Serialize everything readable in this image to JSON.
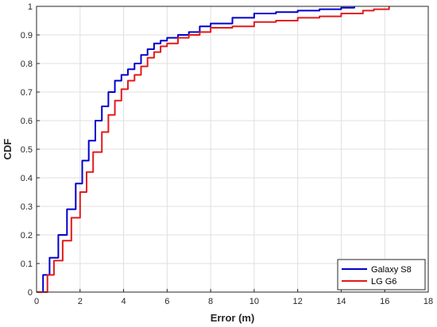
{
  "chart_data": {
    "type": "line",
    "xlabel": "Error (m)",
    "ylabel": "CDF",
    "xlim": [
      0,
      18
    ],
    "ylim": [
      0,
      1
    ],
    "xticks": [
      "0",
      "2",
      "4",
      "6",
      "8",
      "10",
      "12",
      "14",
      "16",
      "18"
    ],
    "yticks": [
      "0",
      "0.1",
      "0.2",
      "0.3",
      "0.4",
      "0.5",
      "0.6",
      "0.7",
      "0.8",
      "0.9",
      "1"
    ],
    "grid": true,
    "legend_position": "bottom-right",
    "series": [
      {
        "name": "Galaxy S8",
        "color": "#0000cc",
        "x": [
          0,
          0.3,
          0.6,
          1.0,
          1.4,
          1.8,
          2.1,
          2.4,
          2.7,
          3.0,
          3.3,
          3.6,
          3.9,
          4.2,
          4.5,
          4.8,
          5.1,
          5.4,
          5.7,
          6.0,
          6.5,
          7.0,
          7.5,
          8.0,
          9.0,
          10.0,
          11.0,
          12.0,
          13.0,
          14.0,
          14.6
        ],
        "y": [
          0,
          0.06,
          0.12,
          0.2,
          0.29,
          0.38,
          0.46,
          0.53,
          0.6,
          0.65,
          0.7,
          0.74,
          0.76,
          0.78,
          0.8,
          0.83,
          0.85,
          0.87,
          0.88,
          0.89,
          0.9,
          0.91,
          0.93,
          0.94,
          0.96,
          0.975,
          0.98,
          0.985,
          0.99,
          0.995,
          1.0
        ]
      },
      {
        "name": "LG G6",
        "color": "#e31a1c",
        "x": [
          0,
          0.5,
          0.8,
          1.2,
          1.6,
          2.0,
          2.3,
          2.6,
          3.0,
          3.3,
          3.6,
          3.9,
          4.2,
          4.5,
          4.8,
          5.1,
          5.4,
          5.7,
          6.0,
          6.5,
          7.0,
          7.5,
          8.0,
          9.0,
          10.0,
          11.0,
          12.0,
          13.0,
          14.0,
          15.0,
          15.5,
          16.2
        ],
        "y": [
          0,
          0.06,
          0.11,
          0.18,
          0.26,
          0.35,
          0.42,
          0.49,
          0.56,
          0.62,
          0.67,
          0.71,
          0.74,
          0.76,
          0.79,
          0.82,
          0.84,
          0.86,
          0.87,
          0.89,
          0.9,
          0.91,
          0.925,
          0.93,
          0.945,
          0.95,
          0.96,
          0.965,
          0.975,
          0.985,
          0.99,
          1.0
        ]
      }
    ]
  }
}
